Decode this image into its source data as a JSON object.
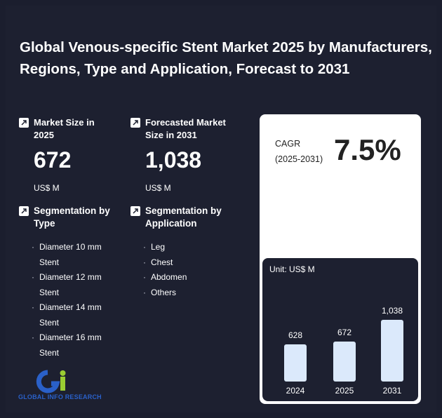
{
  "title": "Global Venous-specific Stent Market 2025 by Manufacturers, Regions, Type and Application, Forecast to 2031",
  "market_size": {
    "label": "Market Size in 2025",
    "value": "672",
    "unit": "US$ M"
  },
  "forecast_size": {
    "label": "Forecasted Market Size in 2031",
    "value": "1,038",
    "unit": "US$ M"
  },
  "segmentation_type": {
    "label": "Segmentation by Type",
    "items": [
      "Diameter 10 mm Stent",
      "Diameter 12 mm Stent",
      "Diameter 14 mm Stent",
      "Diameter 16 mm Stent"
    ]
  },
  "segmentation_application": {
    "label": "Segmentation by Application",
    "items": [
      "Leg",
      "Chest",
      "Abdomen",
      "Others"
    ]
  },
  "cagr": {
    "label_line1": "CAGR",
    "label_line2": "(2025-2031)",
    "value": "7.5%"
  },
  "logo_text": "GLOBAL INFO RESEARCH",
  "chart_data": {
    "type": "bar",
    "unit_label": "Unit: US$ M",
    "categories": [
      "2024",
      "2025",
      "2031"
    ],
    "values": [
      628,
      672,
      1038
    ],
    "value_labels": [
      "628",
      "672",
      "1,038"
    ],
    "bar_color": "#dbe9fb"
  }
}
